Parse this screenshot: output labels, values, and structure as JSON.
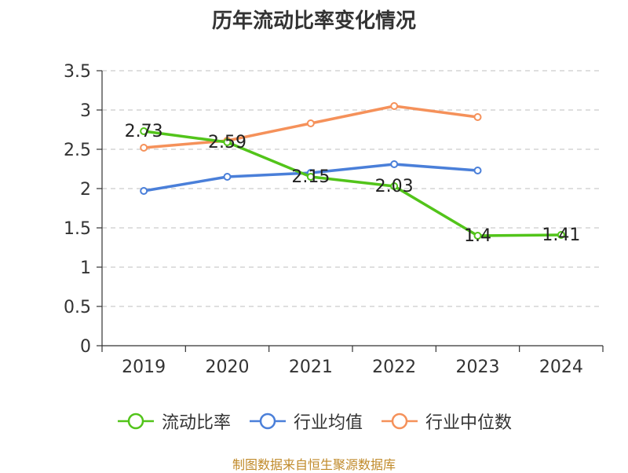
{
  "chart_data": {
    "type": "line",
    "title": "历年流动比率变化情况",
    "categories": [
      "2019",
      "2020",
      "2021",
      "2022",
      "2023",
      "2024"
    ],
    "ylim": [
      0,
      3.5
    ],
    "yticks": [
      "0",
      "0.5",
      "1",
      "1.5",
      "2",
      "2.5",
      "3",
      "3.5"
    ],
    "grid": true,
    "legend_position": "bottom",
    "series": [
      {
        "name": "流动比率",
        "color": "#52c41a",
        "values": [
          2.73,
          2.59,
          2.15,
          2.03,
          1.4,
          1.41
        ],
        "labels": [
          "2.73",
          "2.59",
          "2.15",
          "2.03",
          "1.4",
          "1.41"
        ]
      },
      {
        "name": "行业均值",
        "color": "#4a7fd9",
        "values": [
          1.97,
          2.15,
          2.2,
          2.31,
          2.23,
          null
        ]
      },
      {
        "name": "行业中位数",
        "color": "#f5915a",
        "values": [
          2.52,
          2.61,
          2.83,
          3.05,
          2.91,
          null
        ]
      }
    ]
  },
  "source": "制图数据来自恒生聚源数据库"
}
